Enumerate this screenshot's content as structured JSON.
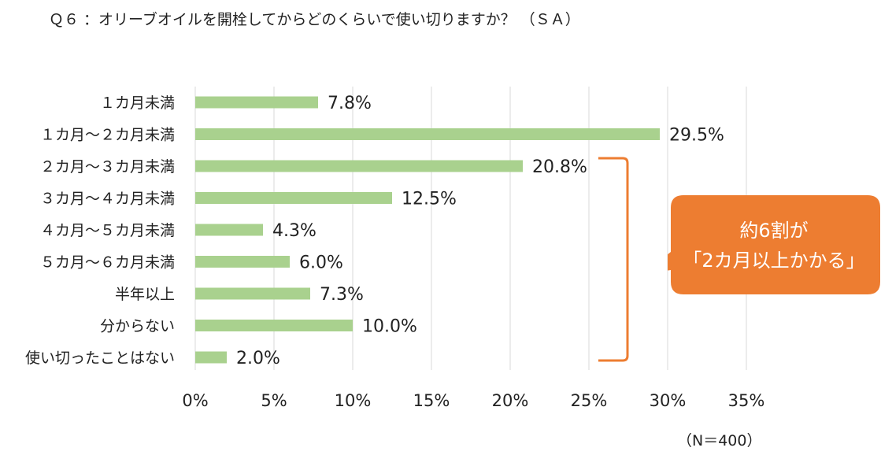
{
  "title": "Ｑ６ ：オリーブオイルを開栓してからどのくらいで使い切りますか？ （ＳＡ）",
  "sample_note": "（N＝400）",
  "callout": {
    "line1": "約6割が",
    "line2": "「2カ月以上かかる」",
    "color": "#ED7D31"
  },
  "colors": {
    "bar": "#A9D18E",
    "grid": "#D9D9D9",
    "bracket": "#ED7D31"
  },
  "chart_data": {
    "type": "bar",
    "orientation": "horizontal",
    "categories": [
      "１カ月未満",
      "１カ月～２カ月未満",
      "２カ月～３カ月未満",
      "３カ月～４カ月未満",
      "４カ月～５カ月未満",
      "５カ月～６カ月未満",
      "半年以上",
      "分からない",
      "使い切ったことはない"
    ],
    "values": [
      7.8,
      29.5,
      20.8,
      12.5,
      4.3,
      6.0,
      7.3,
      10.0,
      2.0
    ],
    "value_labels": [
      "7.8%",
      "29.5%",
      "20.8%",
      "12.5%",
      "4.3%",
      "6.0%",
      "7.3%",
      "10.0%",
      "2.0%"
    ],
    "xlim": [
      0,
      35
    ],
    "xticks": [
      0,
      5,
      10,
      15,
      20,
      25,
      30,
      35
    ],
    "xtick_labels": [
      "0%",
      "5%",
      "10%",
      "15%",
      "20%",
      "25%",
      "30%",
      "35%"
    ],
    "grid": true,
    "bracket_range": [
      "２カ月～３カ月未満",
      "使い切ったことはない"
    ]
  }
}
